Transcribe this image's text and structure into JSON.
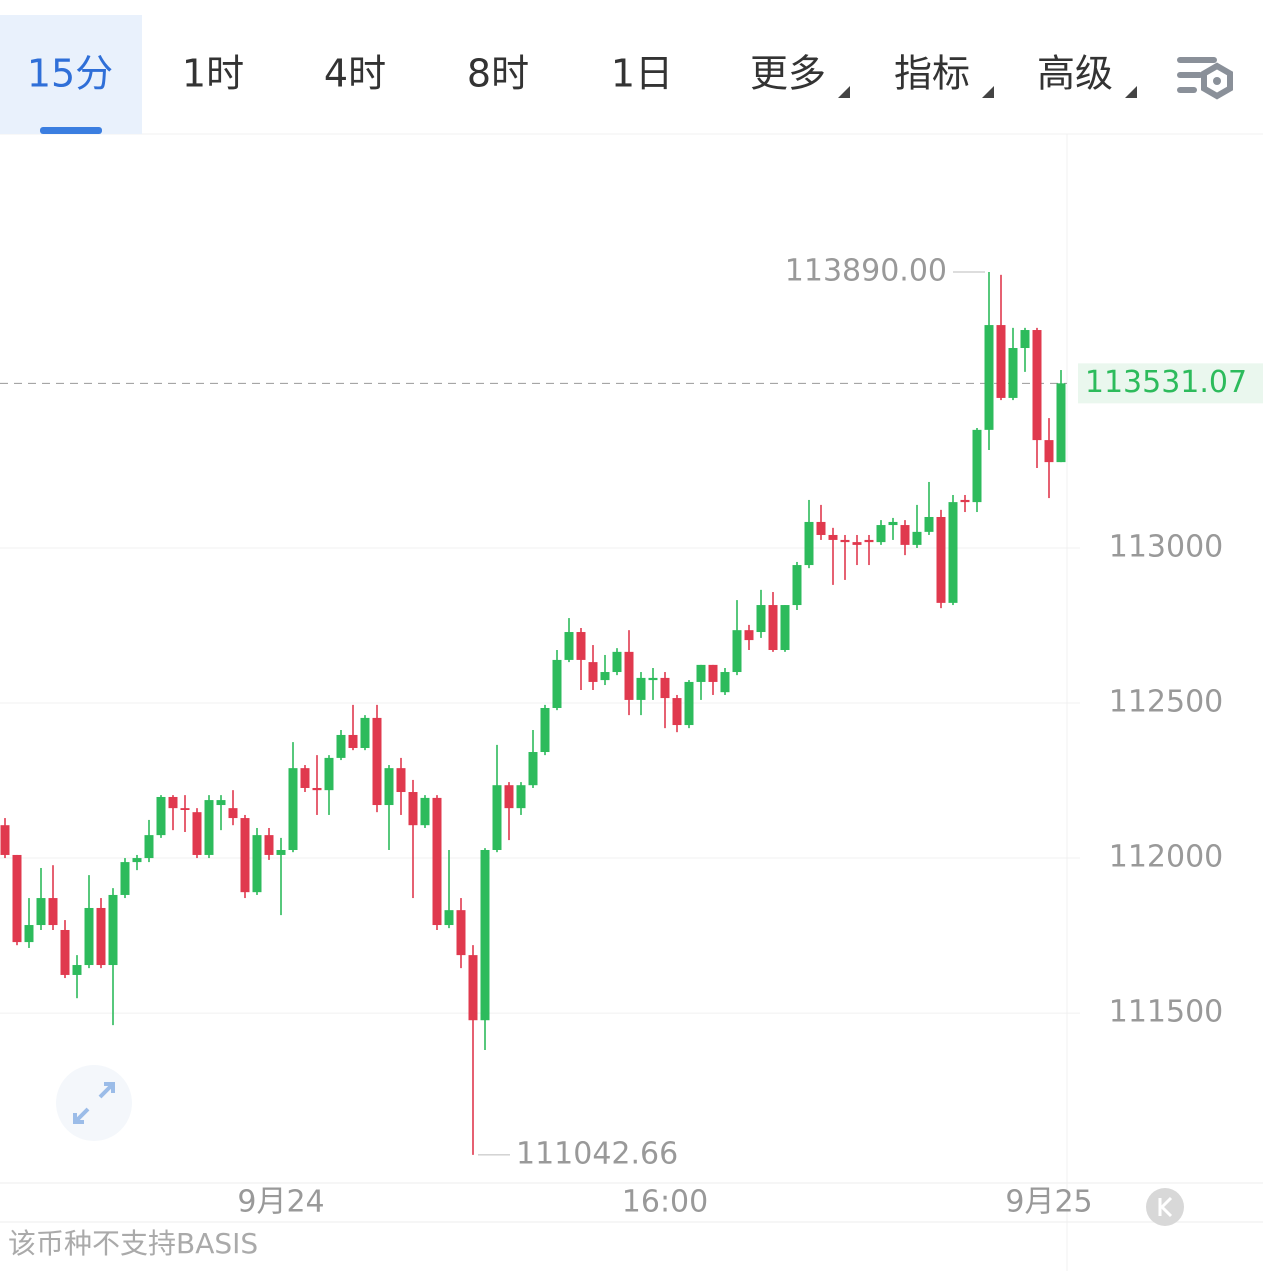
{
  "tabs": [
    "15分",
    "1时",
    "4时",
    "8时",
    "1日",
    "更多",
    "指标",
    "高级"
  ],
  "active_tab": 0,
  "footer_note": "该币种不支持BASIS",
  "chart_data": {
    "type": "candlestick",
    "categories": [
      null,
      null,
      null,
      null,
      null,
      null,
      null,
      null,
      null,
      null,
      null,
      null,
      null,
      null,
      null,
      null,
      null,
      null,
      null,
      null,
      null,
      null,
      null,
      "9月24",
      null,
      null,
      null,
      null,
      null,
      null,
      null,
      null,
      null,
      null,
      null,
      null,
      null,
      null,
      null,
      null,
      null,
      null,
      null,
      null,
      null,
      null,
      null,
      null,
      null,
      null,
      null,
      null,
      null,
      null,
      null,
      "16:00",
      null,
      null,
      null,
      null,
      null,
      null,
      null,
      null,
      null,
      null,
      null,
      null,
      null,
      null,
      null,
      null,
      null,
      null,
      null,
      null,
      null,
      null,
      null,
      null,
      null,
      null,
      null,
      null,
      null,
      null,
      null,
      "9月25",
      null
    ],
    "open": [
      112106,
      112010,
      111729,
      111784,
      111871,
      111768,
      111623,
      111655,
      111839,
      111655,
      111881,
      111987,
      112000,
      112074,
      112197,
      112161,
      112148,
      112010,
      112171,
      112161,
      112129,
      111890,
      112074,
      112010,
      112026,
      112290,
      112226,
      112219,
      112323,
      112397,
      112355,
      112452,
      112171,
      112290,
      112213,
      112106,
      112194,
      111784,
      111832,
      111687,
      111477,
      112026,
      112235,
      112161,
      112235,
      112342,
      112484,
      112639,
      112729,
      112632,
      112574,
      112600,
      112665,
      112510,
      112574,
      112581,
      112516,
      112429,
      112568,
      112623,
      112535,
      112600,
      112735,
      112729,
      112816,
      112671,
      112816,
      112945,
      113084,
      113042,
      113026,
      113019,
      113026,
      113019,
      113074,
      113074,
      113010,
      113052,
      113100,
      112823,
      113155,
      113148,
      113381,
      113719,
      113484,
      113645,
      113703,
      113348,
      113277
    ],
    "high": [
      112129,
      112010,
      111871,
      111968,
      111977,
      111800,
      111687,
      111945,
      111871,
      111903,
      112000,
      112010,
      112123,
      112203,
      112203,
      112203,
      112161,
      112203,
      112203,
      112219,
      112139,
      112097,
      112097,
      112065,
      112374,
      112300,
      112332,
      112332,
      112413,
      112494,
      112461,
      112494,
      112300,
      112323,
      112252,
      112203,
      112203,
      112026,
      111871,
      111719,
      112032,
      112365,
      112245,
      112245,
      112413,
      112494,
      112671,
      112774,
      112742,
      112687,
      112655,
      112677,
      112735,
      112600,
      112613,
      112600,
      112526,
      112574,
      112623,
      112623,
      112613,
      112832,
      112752,
      112865,
      112858,
      112816,
      112955,
      113155,
      113139,
      113065,
      113042,
      113042,
      113042,
      113090,
      113097,
      113090,
      113139,
      113213,
      113123,
      113171,
      113171,
      113387,
      113890,
      113881,
      113710,
      113710,
      113710,
      113419,
      113574
    ],
    "low": [
      112000,
      111719,
      111710,
      111768,
      111768,
      111613,
      111548,
      111645,
      111645,
      111461,
      111871,
      111961,
      111987,
      112065,
      112090,
      112084,
      112000,
      112000,
      112090,
      112106,
      111871,
      111881,
      111994,
      111816,
      112019,
      112213,
      112139,
      112139,
      112316,
      112348,
      112348,
      112148,
      112026,
      112139,
      111871,
      112097,
      111768,
      111774,
      111645,
      111042.66,
      111381,
      112019,
      112058,
      112139,
      112226,
      112332,
      112477,
      112632,
      112542,
      112542,
      112558,
      112590,
      112461,
      112461,
      112510,
      112419,
      112406,
      112419,
      112510,
      112526,
      112526,
      112590,
      112671,
      112710,
      112665,
      112665,
      112800,
      112935,
      113026,
      112881,
      112897,
      112945,
      112945,
      113010,
      113026,
      112977,
      113000,
      113042,
      112806,
      112816,
      113116,
      113116,
      113316,
      113477,
      113477,
      113568,
      113258,
      113161,
      113277
    ],
    "close": [
      112010,
      111729,
      111784,
      111871,
      111784,
      111623,
      111655,
      111839,
      111655,
      111881,
      111987,
      112000,
      112074,
      112197,
      112161,
      112155,
      112010,
      112187,
      112187,
      112129,
      111890,
      112074,
      112010,
      112026,
      112290,
      112226,
      112219,
      112323,
      112397,
      112355,
      112452,
      112171,
      112290,
      112213,
      112106,
      112194,
      111784,
      111832,
      111687,
      111477,
      112026,
      112235,
      112161,
      112235,
      112342,
      112484,
      112639,
      112729,
      112639,
      112568,
      112600,
      112665,
      112510,
      112581,
      112581,
      112516,
      112429,
      112568,
      112623,
      112568,
      112600,
      112735,
      112703,
      112816,
      112671,
      112816,
      112945,
      113084,
      113042,
      113026,
      113019,
      113010,
      113019,
      113074,
      113084,
      113010,
      113052,
      113100,
      112823,
      113148,
      113148,
      113381,
      113719,
      113484,
      113645,
      113703,
      113348,
      113277,
      113531.07
    ],
    "up_color": "#2dbb5c",
    "down_color": "#e0394e",
    "ylim": [
      110952,
      114332
    ],
    "yticks": [
      111500,
      112000,
      112500,
      113000
    ],
    "grid": true,
    "last_price": 113531.07,
    "annotations": [
      {
        "value": 113890,
        "label": "113890.00"
      },
      {
        "value": 111042.66,
        "label": "111042.66"
      }
    ]
  }
}
